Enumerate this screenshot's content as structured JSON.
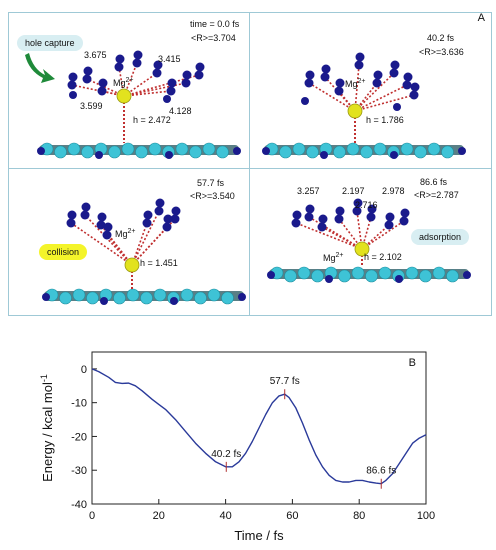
{
  "panel_a": {
    "letter": "A",
    "snapshots": [
      {
        "time": "time = 0.0 fs",
        "r": "<R>=3.704",
        "ion_base": "Mg",
        "ion_sup": "2+",
        "h": "h = 2.472",
        "tag": "hole capture",
        "distances": [
          "3.675",
          "3.415",
          "3.599",
          "4.128"
        ]
      },
      {
        "time": "40.2 fs",
        "r": "<R>=3.636",
        "ion_base": "Mg",
        "ion_sup": "2+",
        "h": "h = 1.786",
        "tag": "",
        "distances": []
      },
      {
        "time": "57.7 fs",
        "r": "<R>=3.540",
        "ion_base": "Mg",
        "ion_sup": "2+",
        "h": "h = 1.451",
        "tag": "collision",
        "distances": []
      },
      {
        "time": "86.6 fs",
        "r": "<R>=2.787",
        "ion_base": "Mg",
        "ion_sup": "2+",
        "h": "h = 2.102",
        "tag": "adsorption",
        "distances": [
          "3.257",
          "2.197",
          "2.716",
          "2.978"
        ]
      }
    ],
    "colors": {
      "carbon": "#3ec3d6",
      "nitrogen": "#1a1a8c",
      "mg": "#e2e21e",
      "bond": "#c03030",
      "tag_blue": "#d8eef2",
      "tag_yellow": "#f4f42a"
    }
  },
  "chart_data": {
    "type": "line",
    "panel_letter": "B",
    "xlabel": "Time / fs",
    "ylabel": "Energy / kcal mol",
    "ylabel_sup": "-1",
    "xlim": [
      0,
      100
    ],
    "ylim": [
      -40,
      5
    ],
    "xticks": [
      0,
      20,
      40,
      60,
      80,
      100
    ],
    "yticks": [
      0,
      -10,
      -20,
      -30,
      -40
    ],
    "line_color": "#2a3a9a",
    "series": [
      {
        "x": [
          0,
          2,
          5,
          7,
          9,
          11,
          13,
          15,
          18,
          20,
          22,
          25,
          28,
          31,
          34,
          37,
          40,
          42,
          44,
          46,
          48,
          50,
          52,
          54,
          56,
          57.7,
          59,
          61,
          63,
          65,
          67,
          69,
          71,
          73,
          75,
          77,
          79,
          81,
          83,
          85,
          86.6,
          88,
          90,
          92,
          94,
          96,
          98,
          100
        ],
        "y": [
          0,
          -0.8,
          -2.5,
          -4,
          -4.3,
          -4.2,
          -5,
          -6.5,
          -9,
          -10.5,
          -12,
          -15,
          -18.5,
          -22,
          -25,
          -27.5,
          -29,
          -29,
          -27.5,
          -25,
          -21.5,
          -17.5,
          -13.5,
          -10,
          -8,
          -7.5,
          -8.5,
          -11.5,
          -16,
          -21,
          -25.5,
          -29,
          -31.5,
          -33,
          -33.5,
          -33.5,
          -33,
          -33,
          -33.5,
          -33.8,
          -34,
          -33,
          -31,
          -28,
          -25,
          -22,
          -20.5,
          -19.5
        ]
      }
    ],
    "annotations": [
      {
        "label": "40.2 fs",
        "x": 40.2,
        "y": -29
      },
      {
        "label": "57.7 fs",
        "x": 57.7,
        "y": -7.5
      },
      {
        "label": "86.6 fs",
        "x": 86.6,
        "y": -34
      }
    ]
  }
}
